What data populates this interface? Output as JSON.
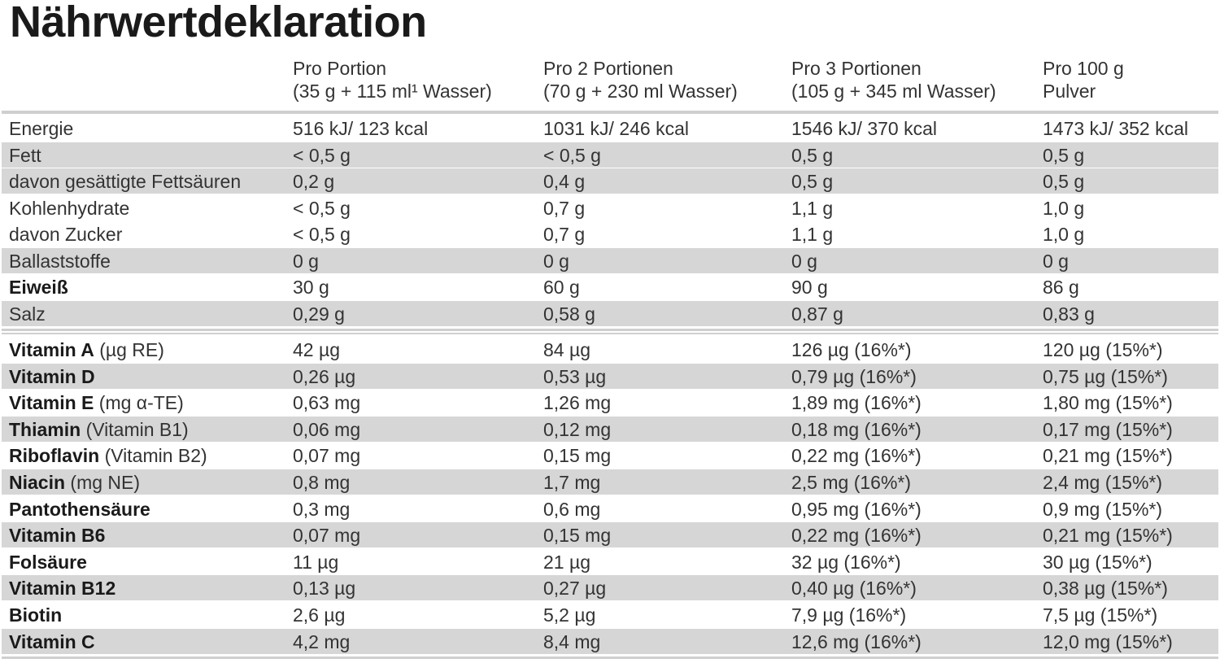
{
  "title": "Nährwertdeklaration",
  "header": {
    "columns": [
      {
        "line1": "Pro Portion",
        "line2": "(35 g + 115 ml¹ Wasser)"
      },
      {
        "line1": "Pro 2 Portionen",
        "line2": "(70 g + 230 ml Wasser)"
      },
      {
        "line1": "Pro 3 Portionen",
        "line2": "(105 g + 345 ml Wasser)"
      },
      {
        "line1": "Pro 100 g",
        "line2": "Pulver"
      }
    ]
  },
  "sections": [
    {
      "rows": [
        {
          "label": "Energie",
          "bold": false,
          "shaded": false,
          "values": [
            "516 kJ/ 123 kcal",
            "1031 kJ/ 246 kcal",
            "1546 kJ/ 370 kcal",
            "1473 kJ/ 352 kcal"
          ]
        },
        {
          "label": "Fett",
          "bold": false,
          "shaded": true,
          "values": [
            "< 0,5 g",
            "< 0,5 g",
            "0,5 g",
            "0,5 g"
          ]
        },
        {
          "label": "davon gesättigte Fettsäuren",
          "bold": false,
          "shaded": true,
          "values": [
            "0,2 g",
            "0,4 g",
            "0,5 g",
            "0,5 g"
          ]
        },
        {
          "label": "Kohlenhydrate",
          "bold": false,
          "shaded": false,
          "values": [
            "< 0,5 g",
            "0,7 g",
            "1,1 g",
            "1,0 g"
          ]
        },
        {
          "label": "davon Zucker",
          "bold": false,
          "shaded": false,
          "values": [
            "< 0,5 g",
            "0,7 g",
            "1,1 g",
            "1,0 g"
          ]
        },
        {
          "label": "Ballaststoffe",
          "bold": false,
          "shaded": true,
          "values": [
            "0 g",
            "0 g",
            "0 g",
            "0 g"
          ]
        },
        {
          "label": "Eiweiß",
          "bold": true,
          "shaded": false,
          "values": [
            "30 g",
            "60 g",
            "90 g",
            "86 g"
          ]
        },
        {
          "label": "Salz",
          "bold": false,
          "shaded": true,
          "values": [
            "0,29 g",
            "0,58 g",
            "0,87 g",
            "0,83 g"
          ]
        }
      ]
    },
    {
      "rows": [
        {
          "label": "Vitamin A",
          "note": "(µg RE)",
          "bold": true,
          "shaded": false,
          "values": [
            "42 µg",
            "84 µg",
            "126 µg (16%*)",
            "120 µg (15%*)"
          ]
        },
        {
          "label": "Vitamin D",
          "bold": true,
          "shaded": true,
          "values": [
            "0,26 µg",
            "0,53 µg",
            "0,79 µg (16%*)",
            "0,75 µg (15%*)"
          ]
        },
        {
          "label": "Vitamin E",
          "note": "(mg α-TE)",
          "bold": true,
          "shaded": false,
          "values": [
            "0,63 mg",
            "1,26 mg",
            "1,89 mg (16%*)",
            "1,80 mg (15%*)"
          ]
        },
        {
          "label": "Thiamin",
          "note": "(Vitamin B1)",
          "bold": true,
          "shaded": true,
          "values": [
            "0,06 mg",
            "0,12 mg",
            "0,18 mg (16%*)",
            "0,17 mg (15%*)"
          ]
        },
        {
          "label": "Riboflavin",
          "note": "(Vitamin B2)",
          "bold": true,
          "shaded": false,
          "values": [
            "0,07 mg",
            "0,15 mg",
            "0,22 mg (16%*)",
            "0,21 mg (15%*)"
          ]
        },
        {
          "label": "Niacin",
          "note": "(mg NE)",
          "bold": true,
          "shaded": true,
          "values": [
            "0,8 mg",
            "1,7 mg",
            "2,5 mg (16%*)",
            "2,4 mg (15%*)"
          ]
        },
        {
          "label": "Pantothensäure",
          "bold": true,
          "shaded": false,
          "values": [
            "0,3 mg",
            "0,6 mg",
            "0,95 mg (16%*)",
            "0,9 mg (15%*)"
          ]
        },
        {
          "label": "Vitamin B6",
          "bold": true,
          "shaded": true,
          "values": [
            "0,07 mg",
            "0,15 mg",
            "0,22 mg (16%*)",
            "0,21 mg (15%*)"
          ]
        },
        {
          "label": "Folsäure",
          "bold": true,
          "shaded": false,
          "values": [
            "11 µg",
            "21 µg",
            "32 µg (16%*)",
            "30 µg (15%*)"
          ]
        },
        {
          "label": "Vitamin B12",
          "bold": true,
          "shaded": true,
          "values": [
            "0,13 µg",
            "0,27 µg",
            "0,40 µg (16%*)",
            "0,38 µg (15%*)"
          ]
        },
        {
          "label": "Biotin",
          "bold": true,
          "shaded": false,
          "values": [
            "2,6 µg",
            "5,2 µg",
            "7,9 µg (16%*)",
            "7,5 µg (15%*)"
          ]
        },
        {
          "label": "Vitamin C",
          "bold": true,
          "shaded": true,
          "values": [
            "4,2 mg",
            "8,4 mg",
            "12,6 mg (16%*)",
            "12,0 mg (15%*)"
          ]
        }
      ]
    }
  ]
}
